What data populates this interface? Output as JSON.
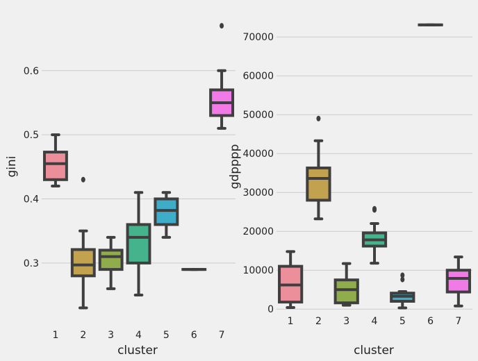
{
  "chart_data": [
    {
      "type": "box",
      "xlabel": "cluster",
      "ylabel": "gini",
      "categories": [
        "1",
        "2",
        "3",
        "4",
        "5",
        "6",
        "7"
      ],
      "yticks": [
        "0.3",
        "0.4",
        "0.5",
        "0.6"
      ],
      "ylim": [
        0.21,
        0.695
      ],
      "grid": true,
      "boxes": [
        {
          "category": "1",
          "color": "#ec8f9b",
          "whisker_low": 0.42,
          "q1": 0.43,
          "median": 0.455,
          "q3": 0.473,
          "whisker_high": 0.5,
          "outliers": []
        },
        {
          "category": "2",
          "color": "#c2a14f",
          "whisker_low": 0.23,
          "q1": 0.28,
          "median": 0.297,
          "q3": 0.321,
          "whisker_high": 0.35,
          "outliers": [
            0.43
          ]
        },
        {
          "category": "3",
          "color": "#8fad4b",
          "whisker_low": 0.26,
          "q1": 0.29,
          "median": 0.31,
          "q3": 0.32,
          "whisker_high": 0.34,
          "outliers": []
        },
        {
          "category": "4",
          "color": "#45b48c",
          "whisker_low": 0.25,
          "q1": 0.3,
          "median": 0.34,
          "q3": 0.36,
          "whisker_high": 0.41,
          "outliers": []
        },
        {
          "category": "5",
          "color": "#3fadc8",
          "whisker_low": 0.34,
          "q1": 0.36,
          "median": 0.382,
          "q3": 0.4,
          "whisker_high": 0.41,
          "outliers": []
        },
        {
          "category": "6",
          "color": "#a9a0e8",
          "whisker_low": 0.29,
          "q1": 0.29,
          "median": 0.29,
          "q3": 0.29,
          "whisker_high": 0.29,
          "outliers": []
        },
        {
          "category": "7",
          "color": "#f17be6",
          "whisker_low": 0.51,
          "q1": 0.53,
          "median": 0.55,
          "q3": 0.57,
          "whisker_high": 0.6,
          "outliers": [
            0.67
          ]
        }
      ]
    },
    {
      "type": "box",
      "xlabel": "cluster",
      "ylabel": "gdpppp",
      "categories": [
        "1",
        "2",
        "3",
        "4",
        "5",
        "6",
        "7"
      ],
      "yticks": [
        "0",
        "10000",
        "20000",
        "30000",
        "40000",
        "50000",
        "60000",
        "70000"
      ],
      "ylim": [
        -3000,
        77000
      ],
      "grid": true,
      "boxes": [
        {
          "category": "1",
          "color": "#ec8f9b",
          "whisker_low": 400,
          "q1": 1800,
          "median": 6200,
          "q3": 11000,
          "whisker_high": 14800,
          "outliers": []
        },
        {
          "category": "2",
          "color": "#c2a14f",
          "whisker_low": 23200,
          "q1": 28000,
          "median": 33600,
          "q3": 36300,
          "whisker_high": 43300,
          "outliers": [
            49000
          ]
        },
        {
          "category": "3",
          "color": "#8fad4b",
          "whisker_low": 1000,
          "q1": 1600,
          "median": 5000,
          "q3": 7500,
          "whisker_high": 11700,
          "outliers": []
        },
        {
          "category": "4",
          "color": "#45b48c",
          "whisker_low": 11800,
          "q1": 16200,
          "median": 17800,
          "q3": 19600,
          "whisker_high": 22000,
          "outliers": [
            25500,
            25800
          ]
        },
        {
          "category": "5",
          "color": "#3fadc8",
          "whisker_low": 300,
          "q1": 2000,
          "median": 3300,
          "q3": 4100,
          "whisker_high": 4500,
          "outliers": [
            7600,
            8700
          ]
        },
        {
          "category": "6",
          "color": "#a9a0e8",
          "whisker_low": 73100,
          "q1": 73100,
          "median": 73100,
          "q3": 73100,
          "whisker_high": 73100,
          "outliers": []
        },
        {
          "category": "7",
          "color": "#f17be6",
          "whisker_low": 800,
          "q1": 4400,
          "median": 7900,
          "q3": 10000,
          "whisker_high": 13400,
          "outliers": []
        }
      ]
    }
  ]
}
